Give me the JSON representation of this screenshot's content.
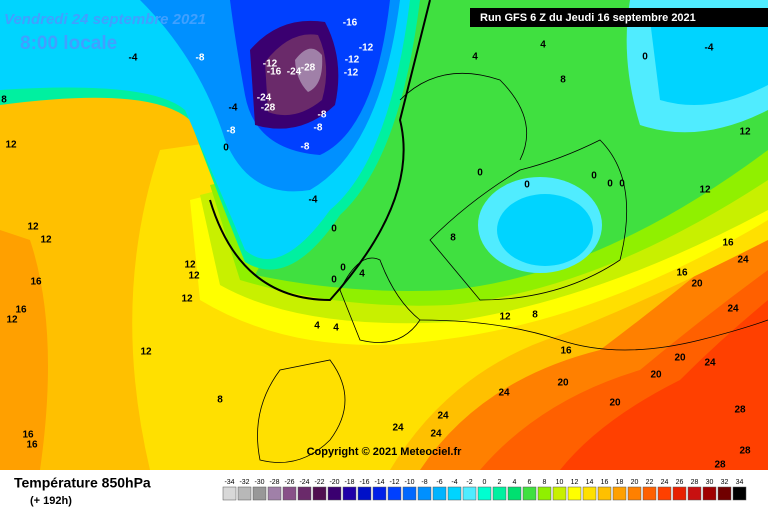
{
  "header": {
    "date": "Vendredi 24 septembre 2021",
    "time": "8:00 locale",
    "run": "Run GFS 6 Z du Jeudi 16 septembre 2021"
  },
  "copyright": "Copyright © 2021 Meteociel.fr",
  "legend": {
    "title": "Température 850hPa",
    "subtitle": "(+ 192h)",
    "ticks": [
      -34,
      -32,
      -30,
      -28,
      -26,
      -24,
      -22,
      -20,
      -18,
      -16,
      -14,
      -12,
      -10,
      -8,
      -6,
      -4,
      -2,
      0,
      2,
      4,
      6,
      8,
      10,
      12,
      14,
      16,
      18,
      20,
      22,
      24,
      26,
      28,
      30,
      32,
      34
    ],
    "colors": [
      "#d8d8d8",
      "#b8b8b8",
      "#989898",
      "#a080a8",
      "#885088",
      "#6a2a6a",
      "#501050",
      "#3a0070",
      "#2000a8",
      "#0010c8",
      "#0020e8",
      "#0040ff",
      "#0068ff",
      "#0090ff",
      "#00b4ff",
      "#00d4ff",
      "#50ecff",
      "#00ffd0",
      "#00f0a0",
      "#00e070",
      "#40e040",
      "#90f000",
      "#c8f000",
      "#ffff00",
      "#ffe000",
      "#ffc000",
      "#ffa000",
      "#ff8000",
      "#ff6000",
      "#ff4000",
      "#e82000",
      "#c81010",
      "#a00000",
      "#700000",
      "#000000"
    ]
  },
  "map": {
    "labels": [
      -4,
      -8,
      -16,
      -12,
      -12,
      -12,
      -12,
      -16,
      -24,
      -28,
      -24,
      -28,
      -4,
      -8,
      -8,
      -8,
      -8,
      0,
      -4,
      0,
      4,
      4,
      0,
      0,
      4,
      8,
      12,
      12,
      12,
      16,
      12,
      12,
      12,
      16,
      12,
      12,
      8,
      16,
      16,
      8,
      8,
      12,
      16,
      20,
      20,
      20,
      20,
      24,
      24,
      24,
      24,
      24,
      24,
      28,
      28,
      28,
      24,
      20,
      16,
      16,
      12,
      12,
      8,
      4,
      0,
      0,
      0,
      -4,
      4,
      0,
      0,
      0
    ]
  }
}
